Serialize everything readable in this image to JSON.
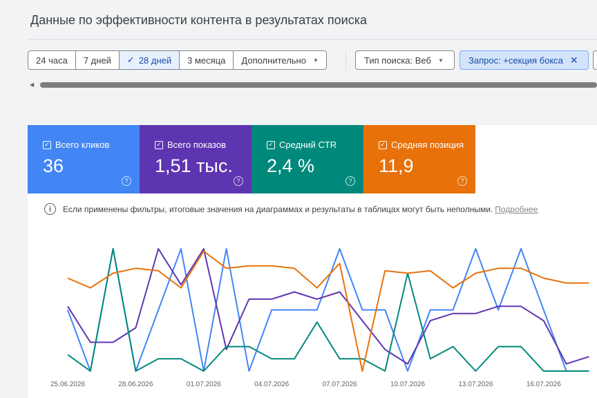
{
  "header": {
    "title": "Данные по эффективности контента в результатах поиска"
  },
  "date_range": {
    "options": [
      "24 часа",
      "7 дней",
      "28 дней",
      "3 месяца",
      "Дополнительно"
    ],
    "selected": "28 дней",
    "check_icon": "check-icon",
    "more_icon": "caret-down-icon"
  },
  "filters": {
    "search_type": "Тип поиска: Веб",
    "query": "Запрос: +секция бокса",
    "query_close_icon": "close-icon"
  },
  "metrics": [
    {
      "label": "Всего кликов",
      "value": "36",
      "color": "#4285f4",
      "checked": true
    },
    {
      "label": "Всего показов",
      "value": "1,51 тыс.",
      "color": "#5e35b1",
      "checked": true
    },
    {
      "label": "Средний CTR",
      "value": "2,4 %",
      "color": "#00897b",
      "checked": true
    },
    {
      "label": "Средняя позиция",
      "value": "11,9",
      "color": "#e8710a",
      "checked": true
    }
  ],
  "notice": {
    "text": "Если применены фильтры, итоговые значения на диаграммах и результаты в таблицах могут быть неполными.",
    "link": "Подробнее"
  },
  "chart_data": {
    "type": "line",
    "x": [
      "25.06.2026",
      "26.06.2026",
      "27.06.2026",
      "28.06.2026",
      "29.06.2026",
      "30.06.2026",
      "01.07.2026",
      "02.07.2026",
      "03.07.2026",
      "04.07.2026",
      "05.07.2026",
      "06.07.2026",
      "07.07.2026",
      "08.07.2026",
      "09.07.2026",
      "10.07.2026",
      "11.07.2026",
      "12.07.2026",
      "13.07.2026",
      "14.07.2026",
      "15.07.2026",
      "16.07.2026",
      "17.07.2026",
      "18.07.2026"
    ],
    "tick_labels": [
      "25.06.2026",
      "28.06.2026",
      "01.07.2026",
      "04.07.2026",
      "07.07.2026",
      "10.07.2026",
      "13.07.2026",
      "16.07.2026"
    ],
    "grid": false,
    "legend": "none",
    "series": [
      {
        "metric": "Всего кликов",
        "color": "#4285f4",
        "values": [
          3,
          0,
          6,
          0,
          3,
          6,
          0,
          6,
          0,
          3,
          3,
          3,
          6,
          3,
          3,
          0,
          3,
          3,
          6,
          3,
          6,
          3,
          0,
          0
        ]
      },
      {
        "metric": "Всего показов",
        "color": "#5e35b1",
        "values": [
          45,
          20,
          20,
          30,
          85,
          60,
          85,
          15,
          50,
          50,
          55,
          50,
          55,
          35,
          15,
          5,
          35,
          40,
          40,
          45,
          45,
          35,
          5,
          10
        ]
      },
      {
        "metric": "Средний CTR",
        "color": "#00897b",
        "values": [
          6.7,
          0,
          50,
          0,
          5,
          5,
          0,
          10,
          10,
          5,
          5,
          20,
          5,
          5,
          0,
          40,
          5,
          10,
          0,
          10,
          10,
          0,
          0,
          0
        ]
      },
      {
        "metric": "Средняя позиция",
        "color": "#e8710a",
        "values": [
          11,
          13,
          10,
          9,
          9.5,
          13,
          5.5,
          9,
          8.5,
          8.5,
          9,
          13,
          8,
          30,
          9.5,
          10,
          9.5,
          13,
          10,
          9,
          9,
          11,
          12,
          12
        ]
      }
    ]
  }
}
